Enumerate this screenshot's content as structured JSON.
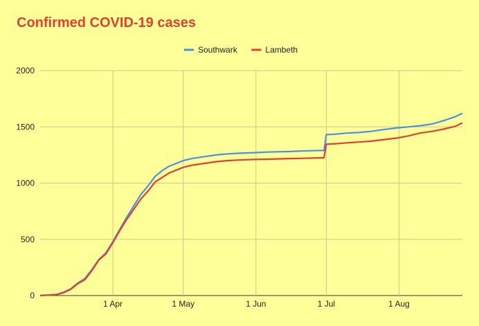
{
  "chart_data": {
    "type": "line",
    "title": "Confirmed COVID-19 cases",
    "xlabel": "",
    "ylabel": "",
    "x_tick_labels": [
      "1 Apr",
      "1 May",
      "1 Jun",
      "1 Jul",
      "1 Aug"
    ],
    "y_tick_labels": [
      "0",
      "500",
      "1000",
      "1500",
      "2000"
    ],
    "ylim": [
      0,
      2000
    ],
    "x": [
      "2020-03-01",
      "2020-03-05",
      "2020-03-08",
      "2020-03-11",
      "2020-03-14",
      "2020-03-17",
      "2020-03-20",
      "2020-03-23",
      "2020-03-26",
      "2020-03-29",
      "2020-04-01",
      "2020-04-04",
      "2020-04-07",
      "2020-04-10",
      "2020-04-13",
      "2020-04-16",
      "2020-04-19",
      "2020-04-22",
      "2020-04-25",
      "2020-04-28",
      "2020-05-01",
      "2020-05-05",
      "2020-05-10",
      "2020-05-15",
      "2020-05-20",
      "2020-05-25",
      "2020-05-31",
      "2020-06-05",
      "2020-06-10",
      "2020-06-15",
      "2020-06-20",
      "2020-06-25",
      "2020-06-30",
      "2020-07-01",
      "2020-07-05",
      "2020-07-10",
      "2020-07-15",
      "2020-07-20",
      "2020-07-25",
      "2020-07-31",
      "2020-08-05",
      "2020-08-10",
      "2020-08-15",
      "2020-08-20",
      "2020-08-25",
      "2020-08-28"
    ],
    "series": [
      {
        "name": "Southwark",
        "color": "#4a90e2",
        "values": [
          0,
          5,
          10,
          30,
          60,
          110,
          150,
          230,
          320,
          380,
          480,
          590,
          700,
          800,
          900,
          975,
          1060,
          1110,
          1150,
          1175,
          1200,
          1220,
          1235,
          1250,
          1260,
          1265,
          1270,
          1275,
          1278,
          1280,
          1285,
          1288,
          1290,
          1430,
          1435,
          1445,
          1450,
          1460,
          1475,
          1490,
          1500,
          1510,
          1525,
          1555,
          1590,
          1620
        ]
      },
      {
        "name": "Lambeth",
        "color": "#e0412f",
        "values": [
          0,
          5,
          8,
          25,
          55,
          105,
          140,
          220,
          315,
          370,
          470,
          580,
          680,
          770,
          860,
          930,
          1010,
          1050,
          1090,
          1115,
          1140,
          1160,
          1175,
          1190,
          1200,
          1205,
          1210,
          1212,
          1215,
          1218,
          1220,
          1222,
          1225,
          1345,
          1350,
          1358,
          1365,
          1372,
          1385,
          1400,
          1420,
          1445,
          1460,
          1480,
          1505,
          1535
        ]
      }
    ],
    "legend_position": "top",
    "grid": true
  }
}
